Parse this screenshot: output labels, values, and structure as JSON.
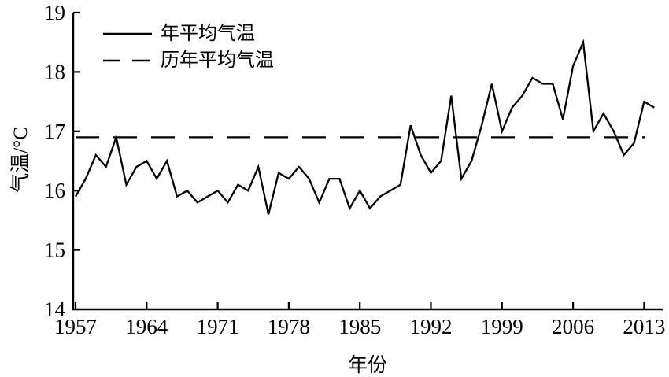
{
  "colors": {
    "line": "#000000",
    "background": "#ffffff"
  },
  "chart_data": {
    "type": "line",
    "title": "",
    "xlabel": "年份",
    "ylabel": "气温/°C",
    "ylim": [
      14,
      19
    ],
    "xlim": [
      1957,
      2015
    ],
    "grid": false,
    "legend_position": "top-left",
    "x_ticks": [
      1957,
      1964,
      1971,
      1978,
      1985,
      1992,
      1999,
      2006,
      2013
    ],
    "y_ticks": [
      14,
      15,
      16,
      17,
      18,
      19
    ],
    "x": [
      1957,
      1958,
      1959,
      1960,
      1961,
      1962,
      1963,
      1964,
      1965,
      1966,
      1967,
      1968,
      1969,
      1970,
      1971,
      1972,
      1973,
      1974,
      1975,
      1976,
      1977,
      1978,
      1979,
      1980,
      1981,
      1982,
      1983,
      1984,
      1985,
      1986,
      1987,
      1988,
      1989,
      1990,
      1991,
      1992,
      1993,
      1994,
      1995,
      1996,
      1997,
      1998,
      1999,
      2000,
      2001,
      2002,
      2003,
      2004,
      2005,
      2006,
      2007,
      2008,
      2009,
      2010,
      2011,
      2012,
      2013,
      2014
    ],
    "series": [
      {
        "name": "年平均气温",
        "style": "solid",
        "values": [
          15.9,
          16.2,
          16.6,
          16.4,
          16.9,
          16.1,
          16.4,
          16.5,
          16.2,
          16.5,
          15.9,
          16.0,
          15.8,
          15.9,
          16.0,
          15.8,
          16.1,
          16.0,
          16.4,
          15.6,
          16.3,
          16.2,
          16.4,
          16.2,
          15.8,
          16.2,
          16.2,
          15.7,
          16.0,
          15.7,
          15.9,
          16.0,
          16.1,
          17.1,
          16.6,
          16.3,
          16.5,
          17.6,
          16.2,
          16.5,
          17.1,
          17.8,
          17.0,
          17.4,
          17.6,
          17.9,
          17.8,
          17.8,
          17.2,
          18.1,
          18.5,
          17.0,
          17.3,
          17.0,
          16.6,
          16.8,
          17.5,
          17.4
        ]
      }
    ],
    "reference_line": {
      "name": "历年平均气温",
      "style": "dashed",
      "value": 16.9
    }
  }
}
